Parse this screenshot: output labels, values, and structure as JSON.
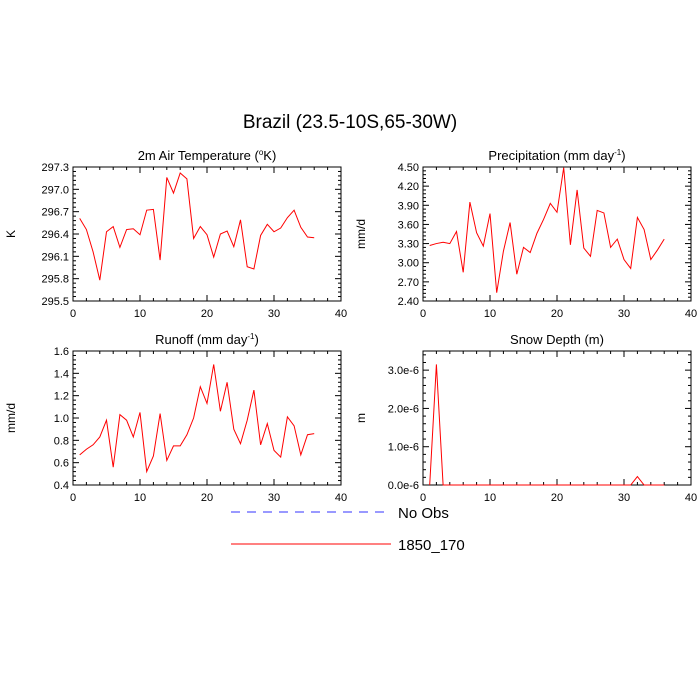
{
  "figure": {
    "title": "Brazil (23.5-10S,65-30W)"
  },
  "legend": {
    "items": [
      {
        "label": "No Obs",
        "color": "#3333ff",
        "dash": true
      },
      {
        "label": "1850_170",
        "color": "#ff0000",
        "dash": false
      }
    ]
  },
  "chart_data": [
    {
      "type": "line",
      "title": "2m Air Temperature (",
      "title_sup": "o",
      "title_end": "K)",
      "ylabel": "K",
      "xlim": [
        0,
        40
      ],
      "ylim": [
        295.5,
        297.3
      ],
      "xticks": [
        0,
        10,
        20,
        30,
        40
      ],
      "yticks": [
        "295.5",
        "295.8",
        "296.1",
        "296.4",
        "296.7",
        "297.0",
        "297.3"
      ],
      "series": [
        {
          "color": "#ff0000",
          "x": [
            1,
            2,
            3,
            4,
            5,
            6,
            7,
            8,
            9,
            10,
            11,
            12,
            13,
            14,
            15,
            16,
            17,
            18,
            19,
            20,
            21,
            22,
            23,
            24,
            25,
            26,
            27,
            28,
            29,
            30,
            31,
            32,
            33,
            34,
            35,
            36
          ],
          "values": [
            296.61,
            296.46,
            296.16,
            295.78,
            296.43,
            296.5,
            296.22,
            296.46,
            296.47,
            296.39,
            296.72,
            296.73,
            296.05,
            297.16,
            296.95,
            297.22,
            297.14,
            296.34,
            296.5,
            296.39,
            296.09,
            296.4,
            296.44,
            296.23,
            296.59,
            295.96,
            295.93,
            296.38,
            296.53,
            296.43,
            296.48,
            296.62,
            296.72,
            296.49,
            296.36,
            296.35
          ]
        }
      ]
    },
    {
      "type": "line",
      "title": "Precipitation (mm day",
      "title_sup": "-1",
      "title_end": ")",
      "ylabel": "mm/d",
      "xlim": [
        0,
        40
      ],
      "ylim": [
        2.4,
        4.5
      ],
      "xticks": [
        0,
        10,
        20,
        30,
        40
      ],
      "yticks": [
        "2.40",
        "2.70",
        "3.00",
        "3.30",
        "3.60",
        "3.90",
        "4.20",
        "4.50"
      ],
      "series": [
        {
          "color": "#ff0000",
          "x": [
            1,
            2,
            3,
            4,
            5,
            6,
            7,
            8,
            9,
            10,
            11,
            12,
            13,
            14,
            15,
            16,
            17,
            18,
            19,
            20,
            21,
            22,
            23,
            24,
            25,
            26,
            27,
            28,
            29,
            30,
            31,
            32,
            33,
            34,
            35,
            36
          ],
          "values": [
            3.27,
            3.3,
            3.32,
            3.3,
            3.49,
            2.85,
            3.95,
            3.47,
            3.26,
            3.77,
            2.53,
            3.18,
            3.63,
            2.82,
            3.24,
            3.16,
            3.46,
            3.68,
            3.93,
            3.79,
            4.49,
            3.28,
            4.14,
            3.23,
            3.1,
            3.82,
            3.78,
            3.24,
            3.37,
            3.05,
            2.91,
            3.71,
            3.52,
            3.05,
            3.2,
            3.37
          ]
        }
      ]
    },
    {
      "type": "line",
      "title": "Runoff (mm day",
      "title_sup": "-1",
      "title_end": ")",
      "ylabel": "mm/d",
      "xlim": [
        0,
        40
      ],
      "ylim": [
        0.4,
        1.6
      ],
      "xticks": [
        0,
        10,
        20,
        30,
        40
      ],
      "yticks": [
        "0.4",
        "0.6",
        "0.8",
        "1.0",
        "1.2",
        "1.4",
        "1.6"
      ],
      "series": [
        {
          "color": "#ff0000",
          "x": [
            1,
            2,
            3,
            4,
            5,
            6,
            7,
            8,
            9,
            10,
            11,
            12,
            13,
            14,
            15,
            16,
            17,
            18,
            19,
            20,
            21,
            22,
            23,
            24,
            25,
            26,
            27,
            28,
            29,
            30,
            31,
            32,
            33,
            34,
            35,
            36
          ],
          "values": [
            0.67,
            0.72,
            0.76,
            0.83,
            0.98,
            0.56,
            1.03,
            0.98,
            0.83,
            1.05,
            0.52,
            0.66,
            1.04,
            0.62,
            0.75,
            0.75,
            0.85,
            1.0,
            1.28,
            1.13,
            1.48,
            1.06,
            1.32,
            0.9,
            0.77,
            0.98,
            1.25,
            0.76,
            0.95,
            0.71,
            0.65,
            1.01,
            0.93,
            0.67,
            0.85,
            0.86
          ]
        }
      ]
    },
    {
      "type": "line",
      "title": "Snow Depth (m)",
      "title_sup": "",
      "title_end": "",
      "ylabel": "m",
      "xlim": [
        0,
        40
      ],
      "ylim": [
        0,
        3.5e-06
      ],
      "xticks": [
        0,
        10,
        20,
        30,
        40
      ],
      "yticks": [
        "0.0e-6",
        "1.0e-6",
        "2.0e-6",
        "3.0e-6"
      ],
      "ytick_values": [
        0,
        1e-06,
        2e-06,
        3e-06
      ],
      "series": [
        {
          "color": "#ff0000",
          "x": [
            1,
            2,
            3,
            4,
            5,
            6,
            7,
            8,
            9,
            10,
            11,
            12,
            13,
            14,
            15,
            16,
            17,
            18,
            19,
            20,
            21,
            22,
            23,
            24,
            25,
            26,
            27,
            28,
            29,
            30,
            31,
            32,
            33,
            34,
            35,
            36
          ],
          "values": [
            0,
            3.15e-06,
            0,
            0,
            0,
            0,
            0,
            0,
            0,
            0,
            0,
            0,
            0,
            0,
            0,
            0,
            0,
            0,
            0,
            0,
            0,
            0,
            0,
            0,
            0,
            0,
            0,
            0,
            0,
            0,
            0,
            2.2e-07,
            0,
            0,
            0,
            0
          ]
        }
      ]
    }
  ]
}
